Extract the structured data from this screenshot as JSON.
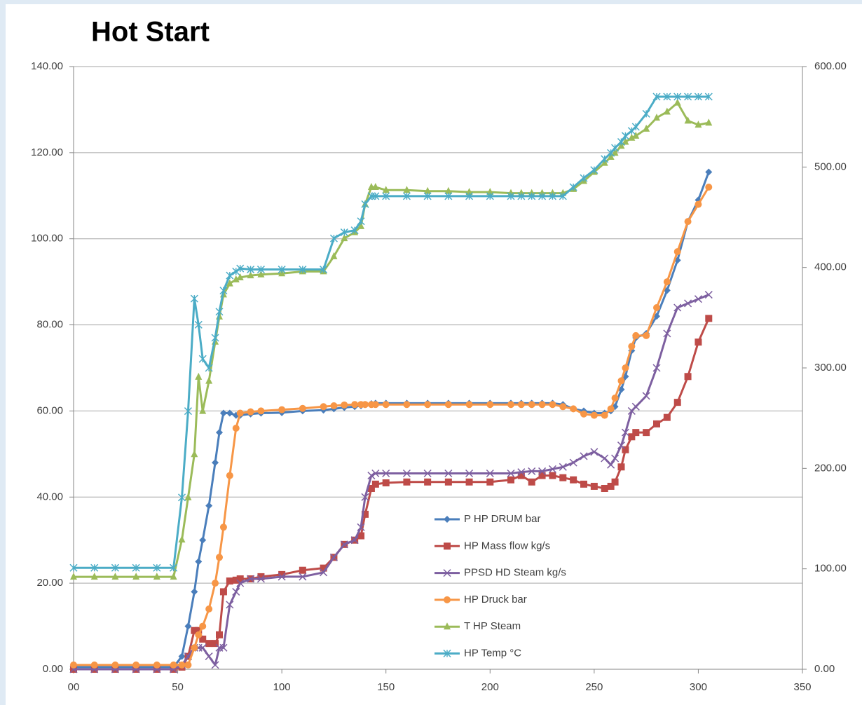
{
  "chart_data": {
    "type": "line",
    "title": "Hot Start",
    "x": [
      0,
      10,
      20,
      30,
      40,
      48,
      52,
      55,
      58,
      60,
      62,
      65,
      68,
      70,
      72,
      75,
      78,
      80,
      85,
      90,
      100,
      110,
      120,
      125,
      130,
      135,
      138,
      140,
      143,
      145,
      150,
      160,
      170,
      180,
      190,
      200,
      210,
      215,
      220,
      225,
      230,
      235,
      240,
      245,
      250,
      255,
      258,
      260,
      263,
      265,
      268,
      270,
      275,
      280,
      285,
      290,
      295,
      300,
      305
    ],
    "series": [
      {
        "name": "P HP DRUM bar",
        "color": "#4a7ebb",
        "marker": "diamond",
        "values": [
          0.5,
          0.5,
          0.5,
          0.5,
          0.5,
          0.5,
          3,
          10,
          18,
          25,
          30,
          38,
          48,
          55,
          59.5,
          59.5,
          59,
          59,
          59.3,
          59.5,
          59.6,
          60,
          60.2,
          60.5,
          60.8,
          61,
          61.2,
          61.5,
          61.7,
          61.8,
          61.8,
          61.8,
          61.8,
          61.8,
          61.8,
          61.8,
          61.8,
          61.8,
          61.8,
          61.8,
          61.8,
          61.5,
          60.5,
          60,
          59.5,
          59.5,
          60,
          61,
          65,
          68,
          74,
          77,
          78,
          82,
          88,
          95,
          104,
          109,
          115.5
        ]
      },
      {
        "name": "HP Mass flow kg/s",
        "color": "#be4b48",
        "marker": "square",
        "values": [
          0,
          0,
          0,
          0,
          0,
          0,
          0.5,
          3,
          9,
          9,
          7,
          6,
          6,
          8,
          18,
          20.5,
          20.7,
          21,
          21,
          21.5,
          22,
          23,
          23.5,
          26,
          29,
          30,
          31,
          36,
          42,
          43,
          43.3,
          43.5,
          43.5,
          43.5,
          43.5,
          43.5,
          44,
          45,
          43.5,
          45,
          45,
          44.5,
          44,
          43,
          42.5,
          42,
          42.5,
          43.5,
          47,
          51,
          54,
          55,
          55,
          57,
          58.5,
          62,
          68,
          76,
          81.5
        ]
      },
      {
        "name": "PPSD HD Steam kg/s",
        "color": "#7d5fa0",
        "marker": "x",
        "values": [
          0,
          0,
          0,
          0,
          0,
          0,
          1,
          3,
          5,
          5,
          5,
          3,
          1,
          5,
          5,
          15,
          18,
          20,
          21,
          21,
          21.5,
          21.5,
          22.5,
          26,
          29,
          30,
          33,
          40,
          45,
          45.5,
          45.5,
          45.5,
          45.5,
          45.5,
          45.5,
          45.5,
          45.5,
          45.8,
          46,
          46,
          46.5,
          47,
          48,
          49.5,
          50.5,
          49,
          47.5,
          49,
          52,
          55,
          60,
          61,
          63.5,
          70,
          78,
          84,
          85,
          86,
          87
        ]
      },
      {
        "name": "HP Druck bar",
        "color": "#f79646",
        "marker": "circle",
        "values": [
          1,
          1,
          1,
          1,
          1,
          1,
          1,
          1,
          5,
          8,
          10,
          14,
          20,
          26,
          33,
          45,
          56,
          59.5,
          59.8,
          60,
          60.3,
          60.6,
          61,
          61.2,
          61.4,
          61.5,
          61.5,
          61.5,
          61.5,
          61.5,
          61.5,
          61.5,
          61.5,
          61.5,
          61.5,
          61.5,
          61.5,
          61.5,
          61.5,
          61.5,
          61.5,
          61,
          60.5,
          59.3,
          59,
          59,
          60.5,
          63,
          67,
          70,
          75,
          77.5,
          77.5,
          84,
          90,
          97,
          104,
          108,
          112
        ]
      },
      {
        "name": "T HP Steam",
        "color": "#9bbb59",
        "marker": "triangle",
        "axis": "y2",
        "values": [
          92,
          92,
          92,
          92,
          92,
          92,
          129,
          171,
          214,
          291,
          257,
          287,
          326,
          351,
          373,
          384,
          388,
          390,
          392,
          393,
          394,
          396,
          396,
          411,
          429,
          435,
          441,
          463,
          480,
          480,
          477,
          477,
          476,
          476,
          475,
          475,
          474,
          474,
          474,
          474,
          474,
          474,
          478,
          486,
          495,
          504,
          510,
          514,
          521,
          525,
          529,
          531,
          538,
          549,
          555,
          564,
          546,
          542,
          544
        ]
      },
      {
        "name": "HP Temp °C",
        "color": "#4bacc6",
        "marker": "star",
        "axis": "y2",
        "values": [
          101,
          101,
          101,
          101,
          101,
          101,
          171,
          257,
          369,
          343,
          309,
          300,
          330,
          356,
          377,
          392,
          396,
          399,
          398,
          398,
          398,
          398,
          398,
          429,
          435,
          437,
          446,
          463,
          471,
          471,
          471,
          471,
          471,
          471,
          471,
          471,
          471,
          471,
          471,
          471,
          471,
          471,
          480,
          489,
          497,
          508,
          514,
          519,
          525,
          531,
          536,
          540,
          553,
          570,
          570,
          570,
          570,
          570,
          570
        ]
      }
    ],
    "xlim": [
      0,
      350
    ],
    "xticks": [
      {
        "value": 0,
        "label": "00"
      },
      50,
      100,
      150,
      200,
      250,
      300,
      350
    ],
    "ylim": [
      0,
      140
    ],
    "yticks": [
      {
        "value": 0,
        "label": "0.00"
      },
      {
        "value": 20,
        "label": "20.00"
      },
      {
        "value": 40,
        "label": "40.00"
      },
      {
        "value": 60,
        "label": "60.00"
      },
      {
        "value": 80,
        "label": "80.00"
      },
      {
        "value": 100,
        "label": "100.00"
      },
      {
        "value": 120,
        "label": "120.00"
      },
      {
        "value": 140,
        "label": "140.00"
      }
    ],
    "y2lim": [
      0,
      600
    ],
    "y2ticks": [
      {
        "value": 0,
        "label": "0.00"
      },
      {
        "value": 100,
        "label": "100.00"
      },
      {
        "value": 200,
        "label": "200.00"
      },
      {
        "value": 300,
        "label": "300.00"
      },
      {
        "value": 400,
        "label": "400.00"
      },
      {
        "value": 500,
        "label": "500.00"
      },
      {
        "value": 600,
        "label": "600.00"
      }
    ],
    "grid": true,
    "legend": "bottom"
  }
}
